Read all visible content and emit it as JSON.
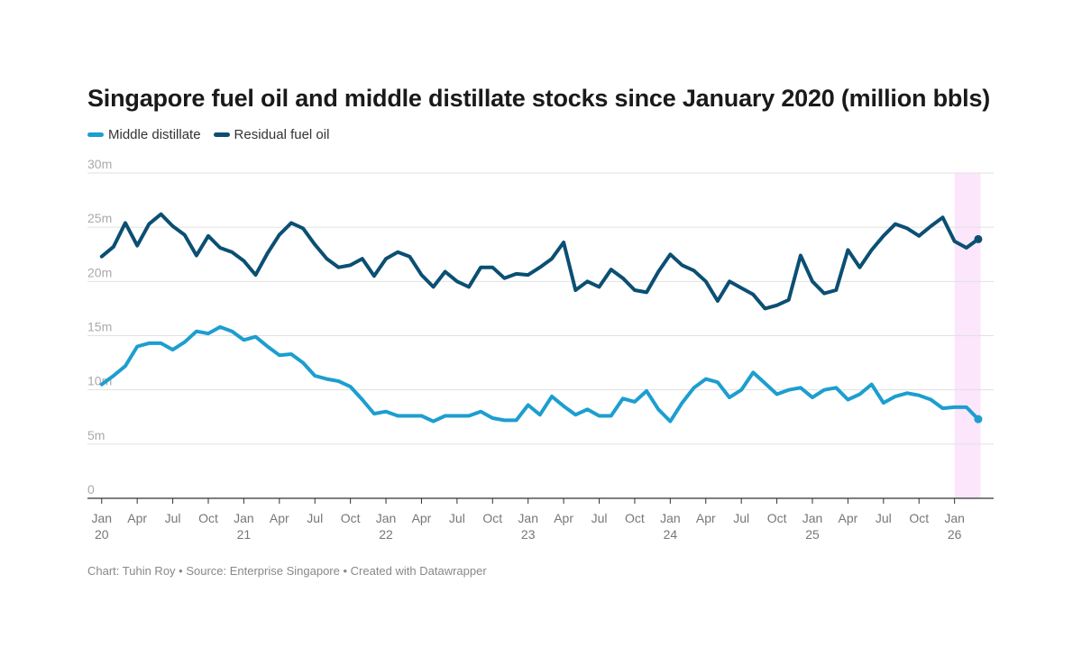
{
  "chart_data": {
    "type": "line",
    "title": "Singapore fuel oil and middle distillate stocks since January 2020 (million bbls)",
    "xlabel": "",
    "ylabel": "",
    "ylim": [
      0,
      30
    ],
    "y_ticks": [
      "0",
      "5m",
      "10m",
      "15m",
      "20m",
      "25m",
      "30m"
    ],
    "y_tick_values": [
      0,
      5,
      10,
      15,
      20,
      25,
      30
    ],
    "x_ticks": [
      {
        "month": 0,
        "label": "Jan",
        "year": "20"
      },
      {
        "month": 3,
        "label": "Apr",
        "year": ""
      },
      {
        "month": 6,
        "label": "Jul",
        "year": ""
      },
      {
        "month": 9,
        "label": "Oct",
        "year": ""
      },
      {
        "month": 12,
        "label": "Jan",
        "year": "21"
      },
      {
        "month": 15,
        "label": "Apr",
        "year": ""
      },
      {
        "month": 18,
        "label": "Jul",
        "year": ""
      },
      {
        "month": 21,
        "label": "Oct",
        "year": ""
      },
      {
        "month": 24,
        "label": "Jan",
        "year": "22"
      },
      {
        "month": 27,
        "label": "Apr",
        "year": ""
      },
      {
        "month": 30,
        "label": "Jul",
        "year": ""
      },
      {
        "month": 33,
        "label": "Oct",
        "year": ""
      },
      {
        "month": 36,
        "label": "Jan",
        "year": "23"
      },
      {
        "month": 39,
        "label": "Apr",
        "year": ""
      },
      {
        "month": 42,
        "label": "Jul",
        "year": ""
      },
      {
        "month": 45,
        "label": "Oct",
        "year": ""
      },
      {
        "month": 48,
        "label": "Jan",
        "year": "24"
      },
      {
        "month": 51,
        "label": "Apr",
        "year": ""
      },
      {
        "month": 54,
        "label": "Jul",
        "year": ""
      },
      {
        "month": 57,
        "label": "Oct",
        "year": ""
      },
      {
        "month": 60,
        "label": "Jan",
        "year": "25"
      },
      {
        "month": 63,
        "label": "Apr",
        "year": ""
      },
      {
        "month": 66,
        "label": "Jul",
        "year": ""
      },
      {
        "month": 69,
        "label": "Oct",
        "year": ""
      },
      {
        "month": 72,
        "label": "Jan",
        "year": "26"
      }
    ],
    "x_range": [
      -1.2,
      75.3
    ],
    "highlight_range": [
      72,
      74.2
    ],
    "series": [
      {
        "name": "Middle distillate",
        "color": "#1d9ecf",
        "values": [
          10.5,
          11.3,
          12.2,
          14.0,
          14.3,
          14.3,
          13.7,
          14.4,
          15.4,
          15.2,
          15.8,
          15.4,
          14.6,
          14.9,
          14.0,
          13.2,
          13.3,
          12.5,
          11.3,
          11.0,
          10.8,
          10.3,
          9.1,
          7.8,
          8.0,
          7.6,
          7.6,
          7.6,
          7.1,
          7.6,
          7.6,
          7.6,
          8.0,
          7.4,
          7.2,
          7.2,
          8.6,
          7.7,
          9.4,
          8.5,
          7.7,
          8.2,
          7.6,
          7.6,
          9.2,
          8.9,
          9.9,
          8.2,
          7.1,
          8.8,
          10.2,
          11.0,
          10.7,
          9.3,
          10.0,
          11.6,
          10.6,
          9.6,
          10.0,
          10.2,
          9.3,
          10.0,
          10.2,
          9.1,
          9.6,
          10.5,
          8.8,
          9.4,
          9.7,
          9.5,
          9.1,
          8.3,
          8.4,
          8.4,
          7.3
        ]
      },
      {
        "name": "Residual fuel oil",
        "color": "#0b4f73",
        "values": [
          22.3,
          23.2,
          25.4,
          23.3,
          25.3,
          26.2,
          25.1,
          24.3,
          22.4,
          24.2,
          23.1,
          22.7,
          21.9,
          20.6,
          22.6,
          24.3,
          25.4,
          24.9,
          23.4,
          22.1,
          21.3,
          21.5,
          22.1,
          20.5,
          22.1,
          22.7,
          22.3,
          20.6,
          19.5,
          20.9,
          20.0,
          19.5,
          21.3,
          21.3,
          20.3,
          20.7,
          20.6,
          21.3,
          22.1,
          23.6,
          19.2,
          20.0,
          19.5,
          21.1,
          20.3,
          19.2,
          19.0,
          20.9,
          22.5,
          21.5,
          21.0,
          20.0,
          18.2,
          20.0,
          19.4,
          18.8,
          17.5,
          17.8,
          18.3,
          22.4,
          20.0,
          18.9,
          19.2,
          22.9,
          21.3,
          22.9,
          24.2,
          25.3,
          24.9,
          24.2,
          25.1,
          25.9,
          23.7,
          23.1,
          23.9
        ]
      }
    ],
    "legend_position": "top-left"
  },
  "footer": "Chart: Tuhin Roy • Source: Enterprise Singapore • Created with Datawrapper"
}
